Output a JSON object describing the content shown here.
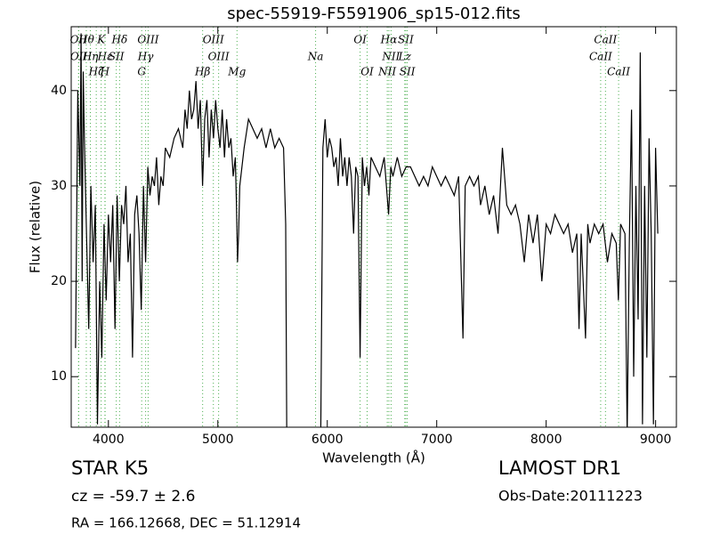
{
  "chart_data": {
    "type": "line",
    "title": "spec-55919-F5591906_sp15-012.fits",
    "x_label": "Wavelength (Å)",
    "y_label": "Flux (relative)",
    "xlim": [
      3660,
      9190
    ],
    "ylim": [
      4.7,
      46.7
    ],
    "xticks": [
      4000,
      5000,
      6000,
      7000,
      8000,
      9000
    ],
    "yticks": [
      10,
      20,
      30,
      40
    ],
    "series": [
      {
        "name": "Flux",
        "color": "#000000",
        "x": [
          3700,
          3720,
          3740,
          3750,
          3760,
          3770,
          3780,
          3800,
          3820,
          3840,
          3860,
          3880,
          3900,
          3920,
          3940,
          3960,
          3980,
          4000,
          4020,
          4040,
          4060,
          4080,
          4100,
          4120,
          4140,
          4160,
          4180,
          4200,
          4220,
          4240,
          4260,
          4280,
          4300,
          4320,
          4340,
          4360,
          4380,
          4400,
          4420,
          4440,
          4460,
          4480,
          4500,
          4520,
          4560,
          4600,
          4640,
          4680,
          4700,
          4720,
          4740,
          4760,
          4780,
          4800,
          4820,
          4840,
          4860,
          4880,
          4900,
          4920,
          4940,
          4960,
          4980,
          5000,
          5020,
          5040,
          5060,
          5080,
          5100,
          5120,
          5140,
          5160,
          5170,
          5180,
          5190,
          5200,
          5240,
          5280,
          5320,
          5360,
          5400,
          5440,
          5480,
          5520,
          5560,
          5600,
          5620,
          5630,
          5940,
          5960,
          5980,
          6000,
          6020,
          6040,
          6060,
          6080,
          6100,
          6120,
          6140,
          6160,
          6180,
          6200,
          6220,
          6240,
          6260,
          6280,
          6300,
          6320,
          6340,
          6360,
          6380,
          6400,
          6440,
          6480,
          6520,
          6560,
          6580,
          6600,
          6640,
          6680,
          6720,
          6760,
          6800,
          6840,
          6880,
          6920,
          6960,
          7000,
          7040,
          7080,
          7120,
          7160,
          7200,
          7240,
          7260,
          7300,
          7340,
          7380,
          7400,
          7440,
          7480,
          7520,
          7560,
          7600,
          7640,
          7680,
          7720,
          7760,
          7800,
          7840,
          7880,
          7920,
          7960,
          8000,
          8040,
          8080,
          8120,
          8160,
          8200,
          8240,
          8280,
          8300,
          8320,
          8360,
          8380,
          8400,
          8440,
          8480,
          8520,
          8560,
          8600,
          8640,
          8660,
          8680,
          8720,
          8740,
          8760,
          8780,
          8800,
          8820,
          8840,
          8860,
          8880,
          8900,
          8920,
          8940,
          8960,
          8980,
          9000,
          9020
        ],
        "values": [
          13,
          40,
          30,
          46,
          20,
          42,
          35,
          25,
          15,
          30,
          22,
          28,
          5,
          20,
          12,
          26,
          18,
          27,
          22,
          28,
          15,
          29,
          20,
          28,
          26,
          30,
          22,
          25,
          12,
          27,
          29,
          25,
          17,
          30,
          22,
          32,
          29,
          31,
          30,
          33,
          28,
          31,
          30,
          34,
          33,
          35,
          36,
          34,
          38,
          36,
          40,
          37,
          38,
          41,
          36,
          39,
          30,
          37,
          39,
          33,
          38,
          35,
          39,
          36,
          34,
          38,
          33,
          37,
          34,
          35,
          31,
          33,
          28,
          22,
          25,
          30,
          34,
          37,
          36,
          35,
          36,
          34,
          36,
          34,
          35,
          34,
          26,
          4,
          4,
          34,
          37,
          33,
          35,
          34,
          32,
          33,
          30,
          35,
          31,
          33,
          30,
          33,
          31,
          25,
          32,
          31,
          12,
          33,
          30,
          32,
          29,
          33,
          32,
          31,
          33,
          27,
          32,
          31,
          33,
          31,
          32,
          32,
          31,
          30,
          31,
          30,
          32,
          31,
          30,
          31,
          30,
          29,
          31,
          14,
          30,
          31,
          30,
          31,
          28,
          30,
          27,
          29,
          25,
          34,
          28,
          27,
          28,
          26,
          22,
          27,
          24,
          27,
          20,
          26,
          25,
          27,
          26,
          25,
          26,
          23,
          25,
          15,
          25,
          14,
          26,
          24,
          26,
          25,
          26,
          22,
          25,
          24,
          18,
          26,
          25,
          4,
          24,
          38,
          10,
          30,
          16,
          44,
          5,
          30,
          12,
          35,
          25,
          5,
          34,
          25
        ]
      }
    ],
    "annotations": [
      {
        "label": "Hθ",
        "x": 3798
      },
      {
        "label": "K",
        "x": 3934
      },
      {
        "label": "Hδ",
        "x": 4102
      },
      {
        "label": "OIII",
        "x": 4363
      },
      {
        "label": "OIII",
        "x": 4959
      },
      {
        "label": "OI",
        "x": 6300
      },
      {
        "label": "Hα",
        "x": 6563
      },
      {
        "label": "SII",
        "x": 6717
      },
      {
        "label": "CaII",
        "x": 8542
      },
      {
        "label": "OII",
        "x": 3727
      },
      {
        "label": "Hη",
        "x": 3835
      },
      {
        "label": "Hε",
        "x": 3970
      },
      {
        "label": "SII",
        "x": 4072
      },
      {
        "label": "Hγ",
        "x": 4340
      },
      {
        "label": "OIII",
        "x": 5007
      },
      {
        "label": "Na",
        "x": 5893
      },
      {
        "label": "NII",
        "x": 6583
      },
      {
        "label": "Lz",
        "x": 6708
      },
      {
        "label": "CaII",
        "x": 8498
      },
      {
        "label": "OII",
        "x": 3729
      },
      {
        "label": "Hζ",
        "x": 3889
      },
      {
        "label": "H",
        "x": 3968
      },
      {
        "label": "G",
        "x": 4304
      },
      {
        "label": "Hβ",
        "x": 4861
      },
      {
        "label": "Mg",
        "x": 5175
      },
      {
        "label": "OI",
        "x": 6364
      },
      {
        "label": "NII",
        "x": 6548
      },
      {
        "label": "SII",
        "x": 6731
      },
      {
        "label": "CaII",
        "x": 8662
      }
    ]
  },
  "footer": {
    "object_class": "STAR",
    "subclass": "K5",
    "cz": "cz = -59.7 ± 2.6",
    "coords": "RA = 166.12668, DEC = 51.12914",
    "survey": "LAMOST DR1",
    "obs_date": "Obs-Date:20111223"
  }
}
